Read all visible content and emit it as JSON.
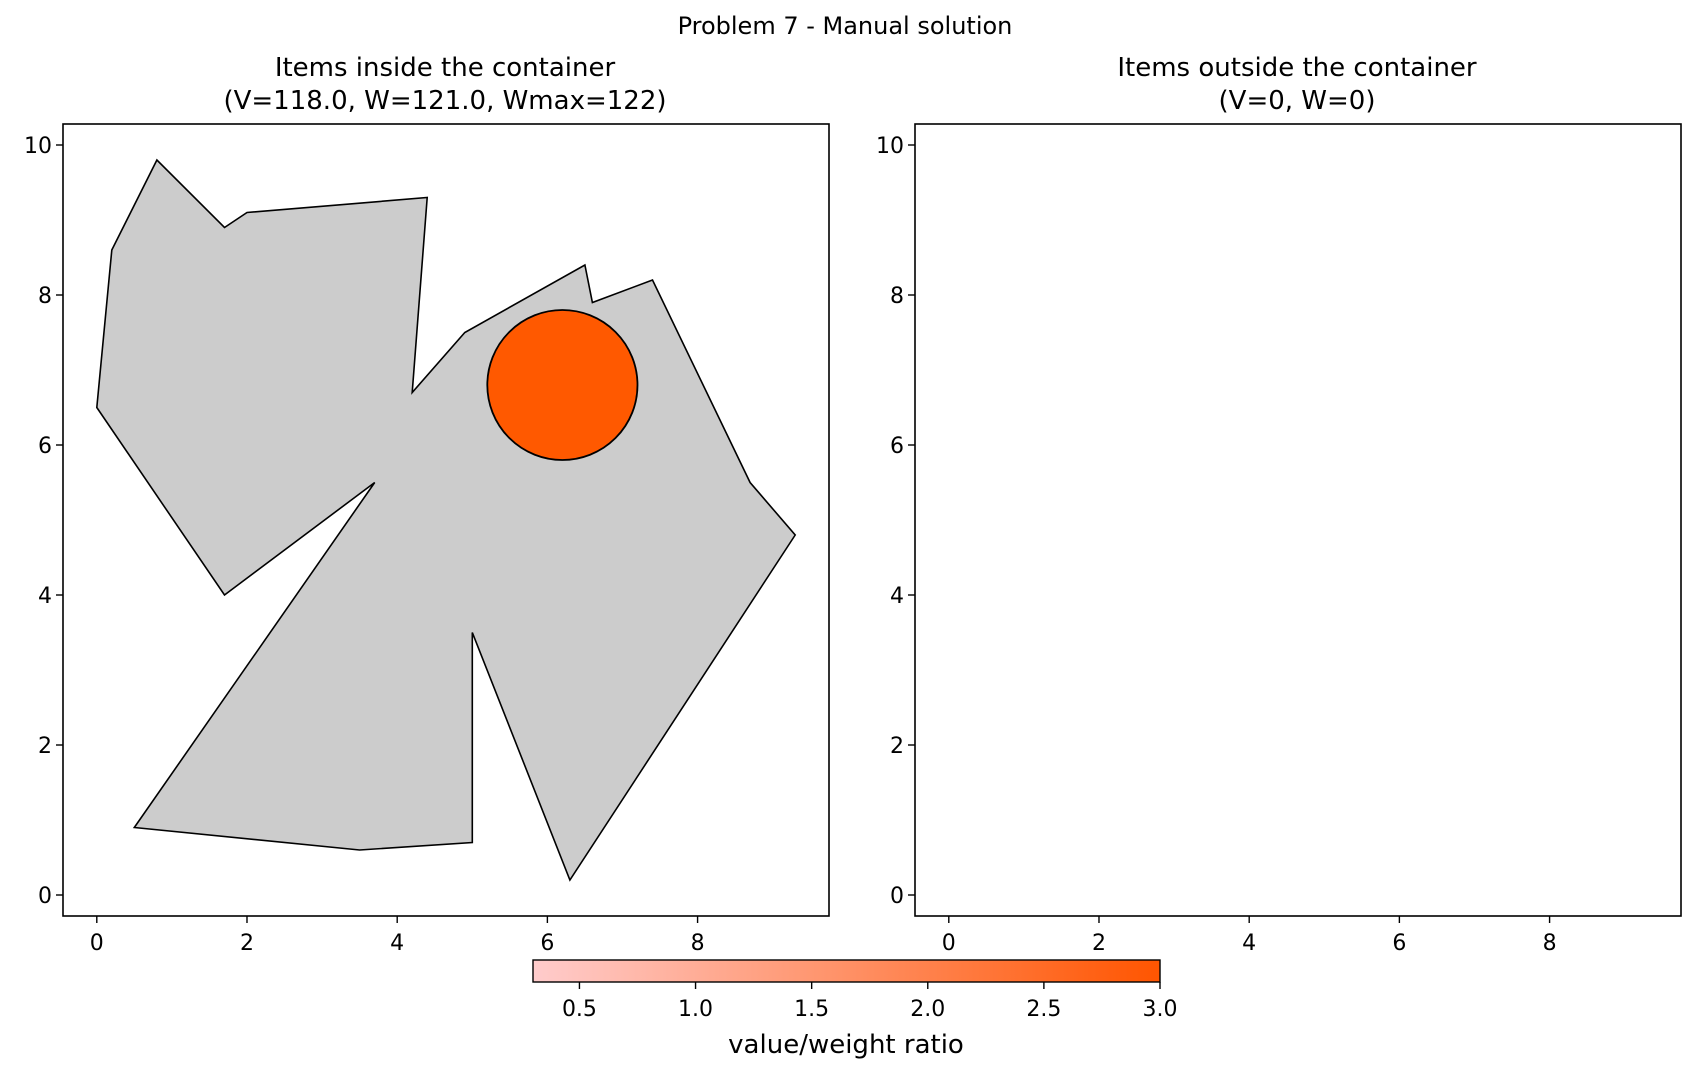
{
  "figure_title": "Problem 7 - Manual solution",
  "chart_data": [
    {
      "type": "polygon-plot",
      "title_line1": "Items inside the container",
      "title_line2": "(V=118.0, W=121.0, Wmax=122)",
      "xlim": [
        -0.45,
        9.75
      ],
      "ylim": [
        -0.28,
        10.28
      ],
      "xticks": [
        0,
        2,
        4,
        6,
        8
      ],
      "yticks": [
        0,
        2,
        4,
        6,
        8,
        10
      ],
      "grid": false,
      "container": {
        "fill": "#cccccc",
        "stroke": "#000000",
        "points": [
          [
            0.5,
            0.9
          ],
          [
            3.5,
            0.6
          ],
          [
            5.0,
            0.7
          ],
          [
            5.0,
            3.5
          ],
          [
            6.3,
            0.2
          ],
          [
            9.3,
            4.8
          ],
          [
            8.7,
            5.5
          ],
          [
            7.4,
            8.2
          ],
          [
            6.6,
            7.9
          ],
          [
            6.5,
            8.4
          ],
          [
            4.9,
            7.5
          ],
          [
            4.2,
            6.7
          ],
          [
            4.4,
            9.3
          ],
          [
            2.0,
            9.1
          ],
          [
            1.7,
            8.9
          ],
          [
            0.8,
            9.8
          ],
          [
            0.2,
            8.6
          ],
          [
            0.0,
            6.5
          ],
          [
            1.7,
            4.0
          ],
          [
            3.7,
            5.5
          ]
        ]
      },
      "items": [
        {
          "shape": "circle",
          "center": [
            6.2,
            6.8
          ],
          "radius": 1.0,
          "fill": "#ff5900",
          "stroke": "#000000"
        }
      ]
    },
    {
      "type": "polygon-plot",
      "title_line1": "Items outside the container",
      "title_line2": "(V=0, W=0)",
      "xlim": [
        -0.45,
        9.75
      ],
      "ylim": [
        -0.28,
        10.28
      ],
      "xticks": [
        0,
        2,
        4,
        6,
        8
      ],
      "yticks": [
        0,
        2,
        4,
        6,
        8,
        10
      ],
      "grid": false,
      "items": []
    }
  ],
  "colorbar": {
    "label": "value/weight ratio",
    "range": [
      0.3,
      3.0
    ],
    "ticks": [
      "0.5",
      "1.0",
      "1.5",
      "2.0",
      "2.5",
      "3.0"
    ],
    "color_low": "#ffcccc",
    "color_high": "#ff5500"
  }
}
